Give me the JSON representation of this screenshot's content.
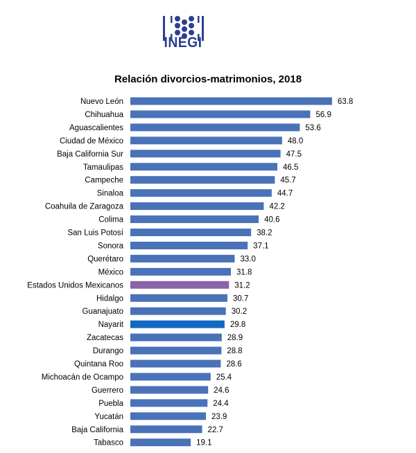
{
  "logo": {
    "text": "INEGI"
  },
  "chart_data": {
    "type": "bar",
    "orientation": "horizontal",
    "title": "Relación divorcios-matrimonios, 2018",
    "xlabel": "",
    "ylabel": "",
    "xlim": [
      0,
      70
    ],
    "grid": false,
    "categories": [
      "Nuevo León",
      "Chihuahua",
      "Aguascalientes",
      "Ciudad de México",
      "Baja California Sur",
      "Tamaulipas",
      "Campeche",
      "Sinaloa",
      "Coahuila de Zaragoza",
      "Colima",
      "San Luis Potosí",
      "Sonora",
      "Querétaro",
      "México",
      "Estados Unidos Mexicanos",
      "Hidalgo",
      "Guanajuato",
      "Nayarit",
      "Zacatecas",
      "Durango",
      "Quintana Roo",
      "Michoacán de Ocampo",
      "Guerrero",
      "Puebla",
      "Yucatán",
      "Baja California",
      "Tabasco"
    ],
    "values": [
      63.8,
      56.9,
      53.6,
      48.0,
      47.5,
      46.5,
      45.7,
      44.7,
      42.2,
      40.6,
      38.2,
      37.1,
      33.0,
      31.8,
      31.2,
      30.7,
      30.2,
      29.8,
      28.9,
      28.8,
      28.6,
      25.4,
      24.6,
      24.4,
      23.9,
      22.7,
      19.1
    ],
    "value_labels": [
      "63.8",
      "56.9",
      "53.6",
      "48.0",
      "47.5",
      "46.5",
      "45.7",
      "44.7",
      "42.2",
      "40.6",
      "38.2",
      "37.1",
      "33.0",
      "31.8",
      "31.2",
      "30.7",
      "30.2",
      "29.8",
      "28.9",
      "28.8",
      "28.6",
      "25.4",
      "24.6",
      "24.4",
      "23.9",
      "22.7",
      "19.1"
    ],
    "colors": {
      "default": "#4a72b8",
      "highlight_national": "#8a63a8",
      "highlight_state": "#1168c2"
    },
    "highlights": {
      "Estados Unidos Mexicanos": "highlight_national",
      "Nayarit": "highlight_state"
    }
  },
  "colors": {
    "logo": "#2c3f8f"
  }
}
